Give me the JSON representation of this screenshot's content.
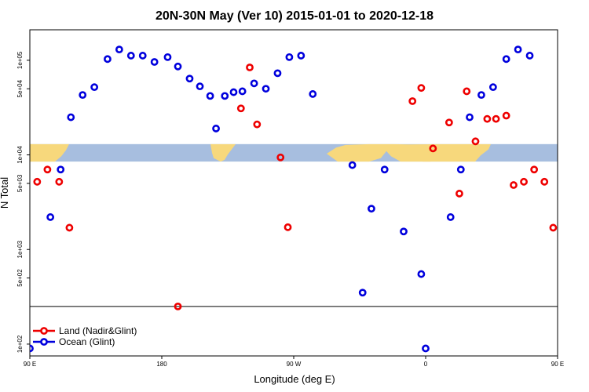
{
  "chart_data": {
    "type": "scatter",
    "title": "20N-30N May (Ver 10)   2015-01-01 to 2020-12-18",
    "xlabel": "Longitude (deg E)",
    "ylabel": "N Total",
    "x_scale": "linear",
    "y_scale": "log",
    "xlim": [
      90,
      450
    ],
    "ylim": [
      75,
      210000
    ],
    "x_ticks": [
      {
        "value": 90,
        "label": "90 E"
      },
      {
        "value": 180,
        "label": "180"
      },
      {
        "value": 270,
        "label": "90 W"
      },
      {
        "value": 360,
        "label": "0"
      },
      {
        "value": 450,
        "label": "90 E"
      },
      {
        "value": 540,
        "label": "180"
      }
    ],
    "y_ticks": [
      {
        "value": 100,
        "label": "1e+02"
      },
      {
        "value": 500,
        "label": "5e+02"
      },
      {
        "value": 1000,
        "label": "1e+03"
      },
      {
        "value": 5000,
        "label": "5e+03"
      },
      {
        "value": 10000,
        "label": "1e+04"
      },
      {
        "value": 50000,
        "label": "5e+04"
      },
      {
        "value": 100000,
        "label": "1e+05"
      }
    ],
    "reference_line_y": 250,
    "map_band": {
      "y_from": 8500,
      "y_to": 13000,
      "ocean_color": "#a7bedf",
      "land_color": "#f7d87c"
    },
    "legend_position": "bottom-left",
    "grid": false,
    "series": [
      {
        "name": "Land (Nadir&Glint)",
        "color": "#ee0000",
        "points": [
          [
            95,
            5200
          ],
          [
            102,
            7000
          ],
          [
            110,
            5200
          ],
          [
            117,
            1700
          ],
          [
            191,
            250
          ],
          [
            234,
            31000
          ],
          [
            240,
            84000
          ],
          [
            245,
            21000
          ],
          [
            261,
            9400
          ],
          [
            266,
            1720
          ],
          [
            351,
            37000
          ],
          [
            357,
            51000
          ],
          [
            365,
            11700
          ],
          [
            376,
            22000
          ],
          [
            383,
            3900
          ],
          [
            388,
            47000
          ],
          [
            394,
            13900
          ],
          [
            402,
            24000
          ],
          [
            408,
            24000
          ],
          [
            415,
            26000
          ],
          [
            420,
            4800
          ],
          [
            427,
            5200
          ],
          [
            434,
            7000
          ],
          [
            441,
            5200
          ],
          [
            447,
            1700
          ]
        ]
      },
      {
        "name": "Ocean (Glint)",
        "color": "#0000dd",
        "points": [
          [
            90,
            90
          ],
          [
            104,
            2200
          ],
          [
            111,
            7000
          ],
          [
            118,
            25000
          ],
          [
            126,
            43000
          ],
          [
            134,
            52000
          ],
          [
            143,
            103000
          ],
          [
            151,
            130000
          ],
          [
            159,
            112000
          ],
          [
            167,
            112000
          ],
          [
            175,
            96000
          ],
          [
            184,
            108000
          ],
          [
            191,
            86000
          ],
          [
            199,
            64000
          ],
          [
            206,
            53000
          ],
          [
            213,
            42000
          ],
          [
            217,
            19000
          ],
          [
            223,
            42000
          ],
          [
            229,
            46000
          ],
          [
            235,
            47000
          ],
          [
            243,
            57000
          ],
          [
            251,
            50000
          ],
          [
            259,
            73000
          ],
          [
            267,
            108000
          ],
          [
            275,
            112000
          ],
          [
            283,
            44000
          ],
          [
            310,
            7800
          ],
          [
            317,
            350
          ],
          [
            323,
            2700
          ],
          [
            332,
            7000
          ],
          [
            345,
            1550
          ],
          [
            357,
            550
          ],
          [
            360,
            90
          ],
          [
            377,
            2200
          ],
          [
            384,
            7000
          ],
          [
            390,
            25000
          ],
          [
            398,
            43000
          ],
          [
            406,
            52000
          ],
          [
            415,
            103000
          ],
          [
            423,
            130000
          ],
          [
            431,
            112000
          ]
        ]
      }
    ]
  }
}
